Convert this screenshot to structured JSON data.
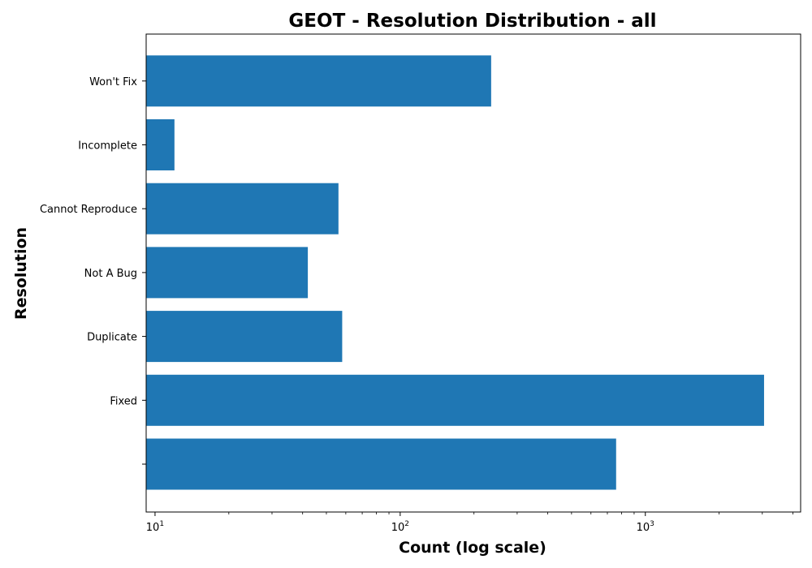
{
  "chart_data": {
    "type": "bar",
    "orientation": "horizontal",
    "title": "GEOT - Resolution Distribution - all",
    "xlabel": "Count (log scale)",
    "ylabel": "Resolution",
    "xscale": "log",
    "xlim": [
      9.2,
      4300
    ],
    "categories": [
      "",
      "Fixed",
      "Duplicate",
      "Not A Bug",
      "Cannot Reproduce",
      "Incomplete",
      "Won't Fix"
    ],
    "values": [
      760,
      3050,
      58,
      42,
      56,
      12,
      235
    ],
    "xticks": [
      {
        "base": "10",
        "exp": "1",
        "value": 10
      },
      {
        "base": "10",
        "exp": "2",
        "value": 100
      },
      {
        "base": "10",
        "exp": "3",
        "value": 1000
      }
    ],
    "bar_color": "#1f77b4",
    "grid": false,
    "legend": "none"
  }
}
